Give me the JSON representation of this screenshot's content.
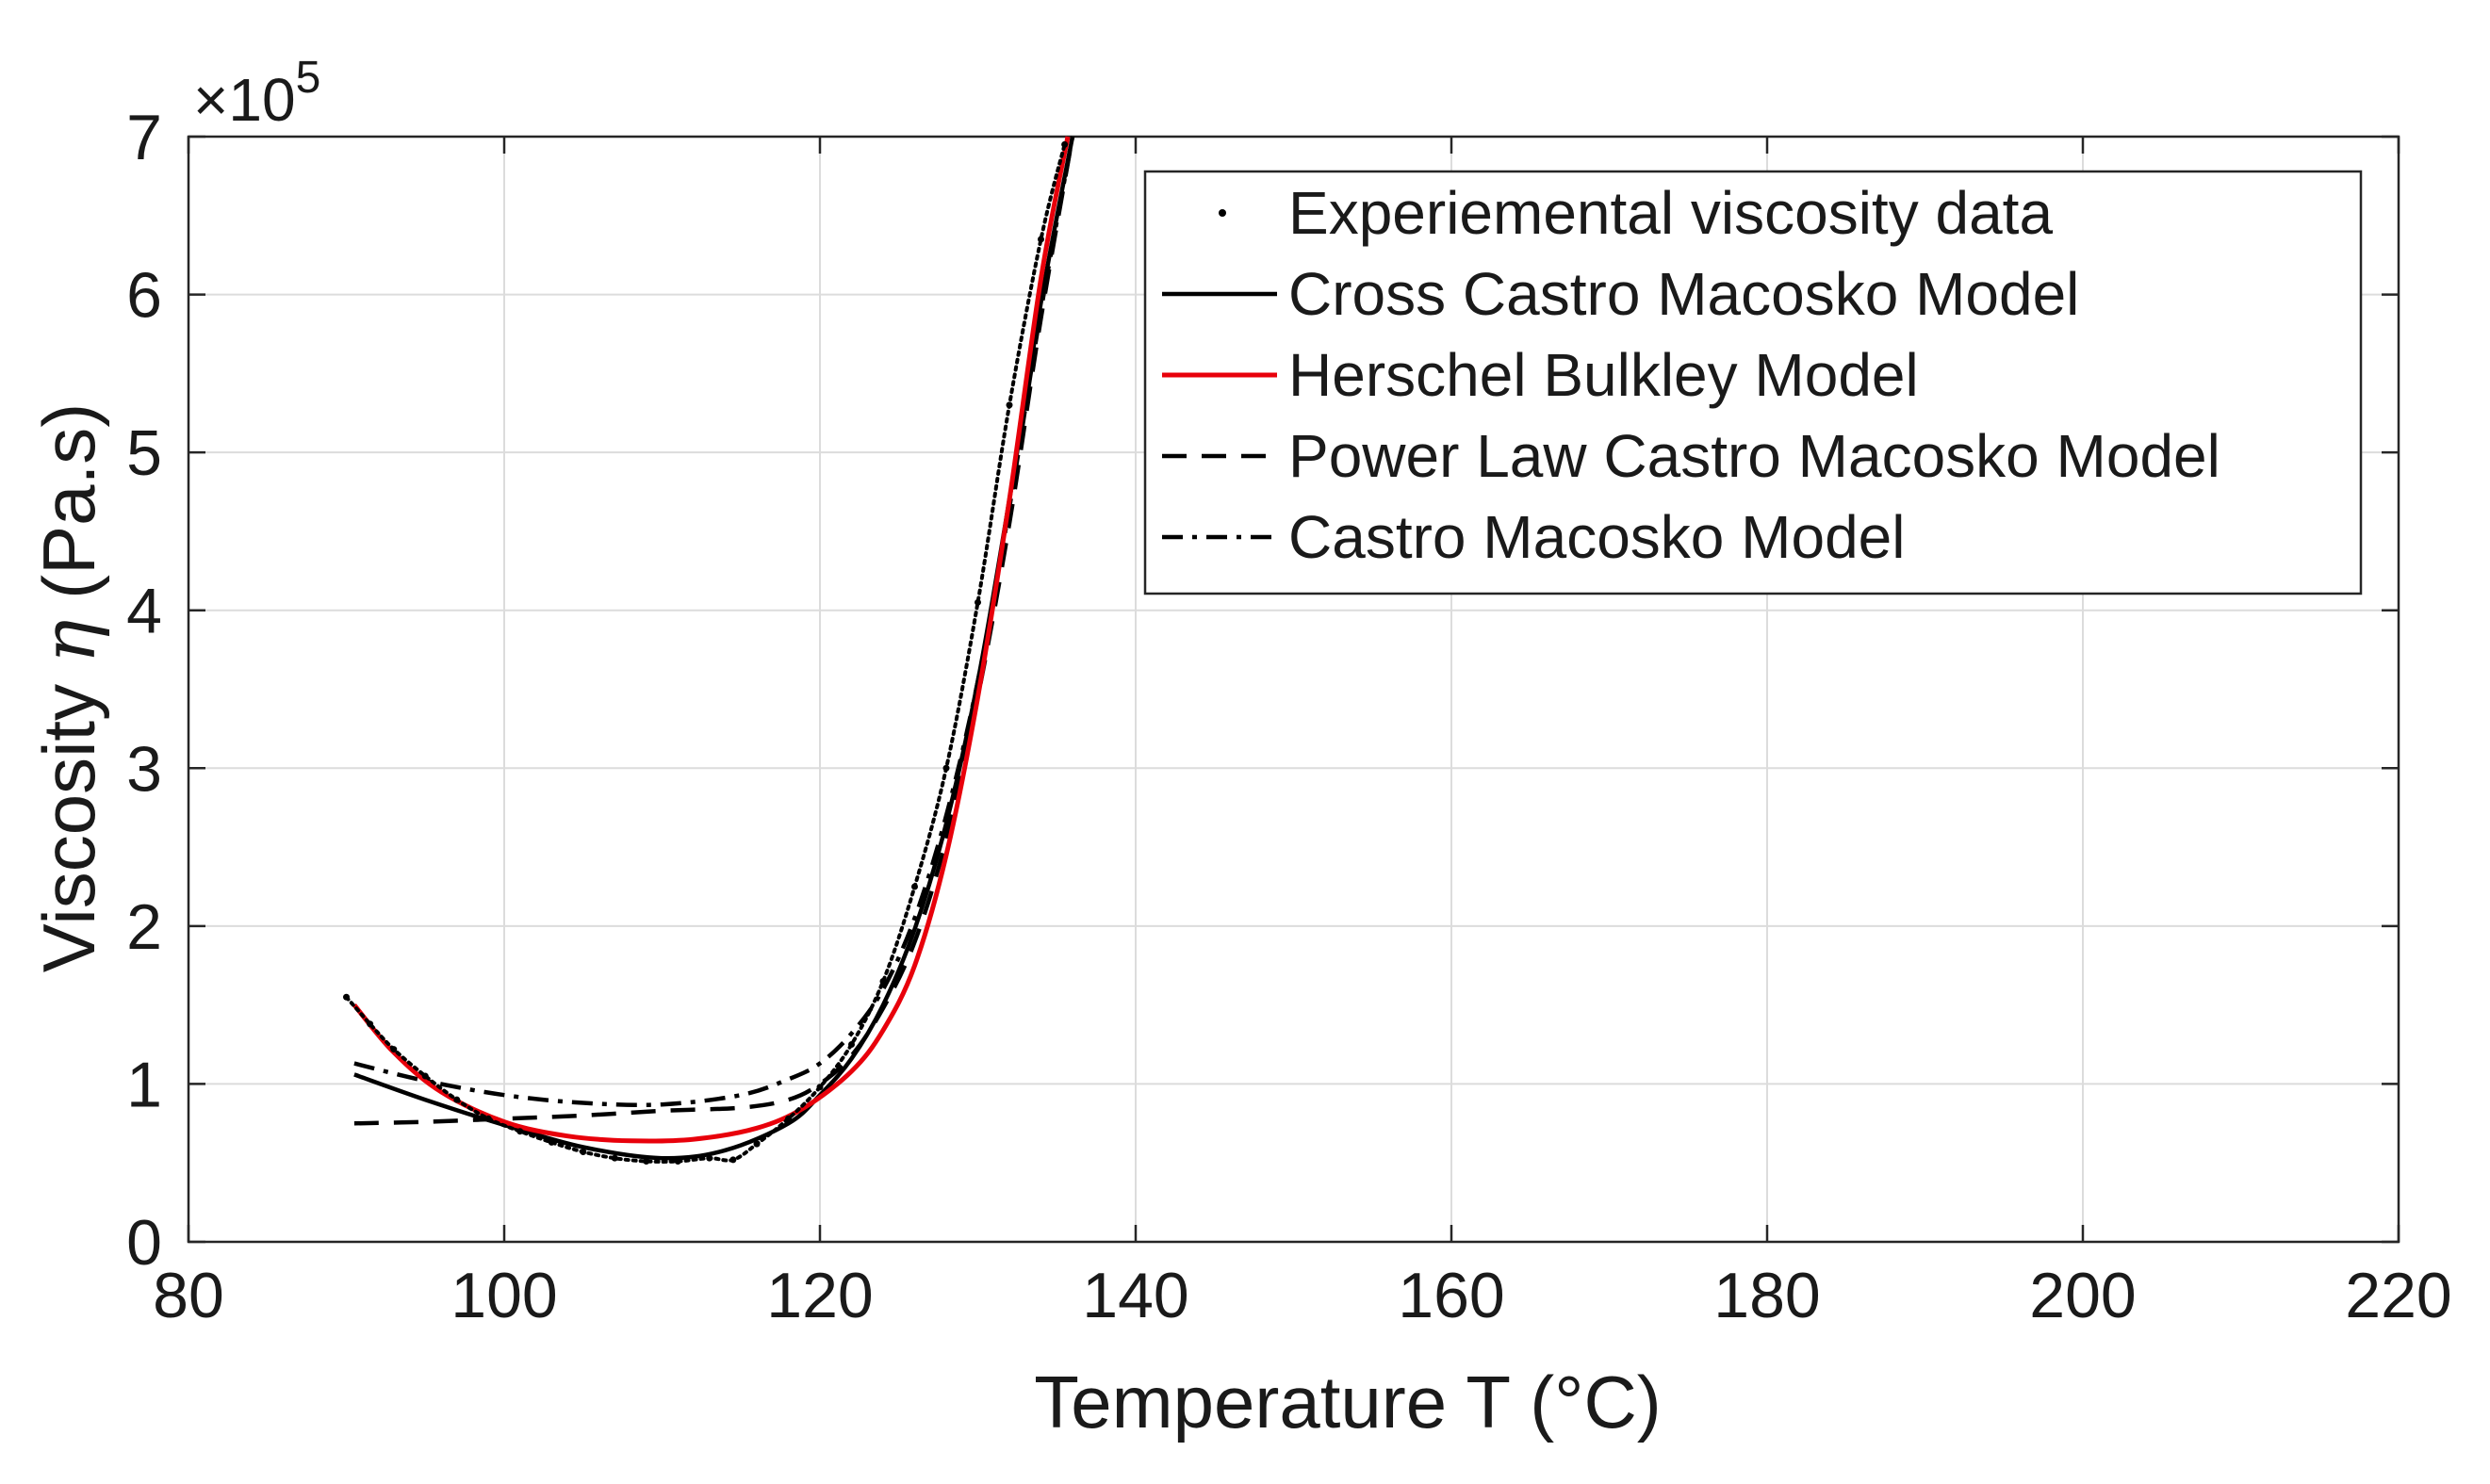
{
  "chart_data": {
    "type": "line",
    "xlabel": "Temperature",
    "xlabel_var": "T (°C)",
    "ylabel": "Viscosity",
    "ylabel_var": "η",
    "ylabel_unit": "(Pa.s)",
    "y_exponent_prefix": "×10",
    "y_exponent_power": "5",
    "xlim": [
      80,
      220
    ],
    "ylim": [
      0,
      7
    ],
    "y_scale": 100000,
    "xticks": [
      80,
      100,
      120,
      140,
      160,
      180,
      200,
      220
    ],
    "yticks": [
      0,
      1,
      2,
      3,
      4,
      5,
      6,
      7
    ],
    "grid": true,
    "legend_position": "top-right",
    "series": [
      {
        "name": "Experiemental viscosity data",
        "style": "dots",
        "color": "#000000",
        "x": [
          90,
          91.5,
          93,
          95,
          97,
          99,
          101,
          103,
          105,
          107,
          109,
          111,
          113,
          114.5,
          116,
          118,
          120,
          122,
          124,
          126,
          128,
          130,
          132,
          134,
          135.5
        ],
        "y": [
          1.55,
          1.38,
          1.22,
          1.05,
          0.9,
          0.78,
          0.7,
          0.63,
          0.57,
          0.53,
          0.51,
          0.51,
          0.53,
          0.52,
          0.62,
          0.78,
          0.98,
          1.25,
          1.65,
          2.25,
          3.0,
          4.05,
          5.3,
          6.35,
          6.95
        ]
      },
      {
        "name": "Cross Castro Macosko Model",
        "style": "solid",
        "color": "#000000",
        "x": [
          90.5,
          95,
          100,
          105,
          110,
          114,
          118,
          120,
          122,
          124,
          126,
          128,
          130,
          132,
          134,
          136
        ],
        "y": [
          1.06,
          0.9,
          0.74,
          0.6,
          0.53,
          0.58,
          0.75,
          0.93,
          1.16,
          1.5,
          1.98,
          2.65,
          3.55,
          4.7,
          5.95,
          7.0
        ]
      },
      {
        "name": "Herschel Bulkley Model",
        "style": "solid",
        "color": "#e8000b",
        "x": [
          90.5,
          93,
          96,
          100,
          104,
          108,
          112,
          116,
          119,
          122,
          124,
          126,
          128,
          130,
          132,
          134,
          135.7
        ],
        "y": [
          1.5,
          1.2,
          0.95,
          0.76,
          0.67,
          0.64,
          0.65,
          0.72,
          0.85,
          1.08,
          1.34,
          1.75,
          2.45,
          3.45,
          4.7,
          6.1,
          7.0
        ]
      },
      {
        "name": "Power Law Castro Macosko Model",
        "style": "dashed",
        "color": "#000000",
        "x": [
          90.5,
          95,
          100,
          105,
          110,
          115,
          118,
          120,
          122,
          124,
          126,
          128,
          130,
          132,
          134,
          136
        ],
        "y": [
          0.75,
          0.76,
          0.78,
          0.8,
          0.83,
          0.85,
          0.9,
          1.0,
          1.18,
          1.48,
          1.9,
          2.55,
          3.45,
          4.55,
          5.85,
          7.0
        ]
      },
      {
        "name": "Castro Macosko Model",
        "style": "dashdot",
        "color": "#000000",
        "x": [
          90.5,
          95,
          100,
          105,
          110,
          115,
          118,
          120,
          122,
          124,
          126,
          128,
          130,
          132,
          134,
          136
        ],
        "y": [
          1.13,
          1.02,
          0.93,
          0.88,
          0.87,
          0.93,
          1.03,
          1.13,
          1.32,
          1.6,
          2.05,
          2.7,
          3.55,
          4.65,
          5.9,
          7.0
        ]
      }
    ]
  }
}
